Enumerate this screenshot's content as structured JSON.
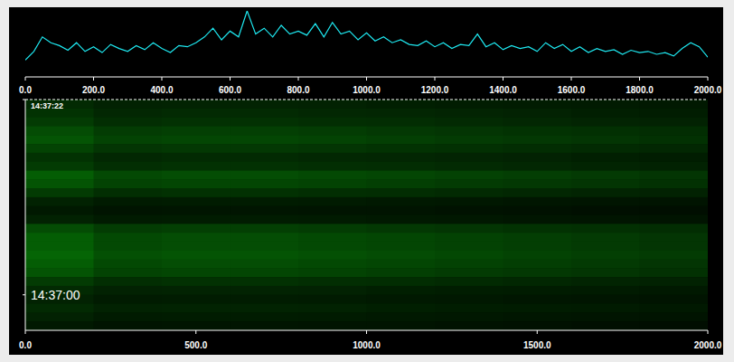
{
  "chart_data": [
    {
      "type": "line",
      "color": "#1ee8f0",
      "tick_labels": "x",
      "x": [
        0,
        25,
        50,
        75,
        100,
        125,
        150,
        175,
        200,
        225,
        250,
        275,
        300,
        325,
        350,
        375,
        400,
        425,
        450,
        475,
        500,
        525,
        550,
        575,
        600,
        625,
        650,
        675,
        700,
        725,
        750,
        775,
        800,
        825,
        850,
        875,
        900,
        925,
        950,
        975,
        1000,
        1025,
        1050,
        1075,
        1100,
        1125,
        1150,
        1175,
        1200,
        1225,
        1250,
        1275,
        1300,
        1325,
        1350,
        1375,
        1400,
        1425,
        1450,
        1475,
        1500,
        1525,
        1550,
        1575,
        1600,
        1625,
        1650,
        1675,
        1700,
        1725,
        1750,
        1775,
        1800,
        1825,
        1850,
        1875,
        1900,
        1925,
        1950,
        1975,
        2000
      ],
      "values": [
        15,
        30,
        55,
        45,
        40,
        32,
        45,
        30,
        38,
        28,
        42,
        35,
        30,
        40,
        33,
        45,
        35,
        28,
        40,
        38,
        45,
        55,
        70,
        50,
        65,
        55,
        100,
        60,
        70,
        55,
        75,
        60,
        65,
        58,
        78,
        55,
        80,
        60,
        65,
        50,
        62,
        48,
        55,
        45,
        50,
        42,
        40,
        48,
        38,
        45,
        35,
        42,
        40,
        60,
        38,
        45,
        33,
        40,
        35,
        38,
        30,
        45,
        35,
        42,
        30,
        38,
        28,
        35,
        30,
        33,
        25,
        32,
        28,
        30,
        25,
        28,
        22,
        35,
        45,
        38,
        20
      ],
      "xlim": [
        0,
        2000
      ],
      "ylim": [
        0,
        100
      ],
      "xticks": [
        {
          "value": 0,
          "label": "0.0"
        },
        {
          "value": 200,
          "label": "200.0"
        },
        {
          "value": 400,
          "label": "400.0"
        },
        {
          "value": 600,
          "label": "600.0"
        },
        {
          "value": 800,
          "label": "800.0"
        },
        {
          "value": 1000,
          "label": "1000.0"
        },
        {
          "value": 1200,
          "label": "1200.0"
        },
        {
          "value": 1400,
          "label": "1400.0"
        },
        {
          "value": 1600,
          "label": "1600.0"
        },
        {
          "value": 1800,
          "label": "1800.0"
        },
        {
          "value": 2000,
          "label": "2000.0"
        }
      ]
    },
    {
      "type": "heatmap",
      "color": "#3cff3c",
      "xlim": [
        0,
        2000
      ],
      "ylim": [
        -4,
        22
      ],
      "xticks": [
        {
          "value": 0,
          "label": "0.0"
        },
        {
          "value": 500,
          "label": "500.0"
        },
        {
          "value": 1000,
          "label": "1000.0"
        },
        {
          "value": 1500,
          "label": "1500.0"
        },
        {
          "value": 2000,
          "label": "2000.0"
        }
      ],
      "yticks": [
        {
          "value": 22,
          "label": "14:37:22"
        },
        {
          "value": 0,
          "label": "14:37:00"
        }
      ],
      "x_bins": [
        0,
        200,
        400,
        600,
        800,
        1000,
        1200,
        1400,
        1600,
        1800,
        2000
      ],
      "y_bins": [
        22,
        21,
        20,
        19,
        18,
        17,
        16,
        15,
        14,
        13,
        12,
        11,
        10,
        9,
        8,
        7,
        6,
        5,
        4,
        3,
        2,
        1,
        0,
        -1,
        -2,
        -3,
        -4
      ],
      "color_range": [
        0,
        100
      ],
      "cells": [
        [
          30,
          24,
          25,
          25,
          24,
          22,
          21,
          20,
          19,
          18
        ],
        [
          36,
          28,
          30,
          30,
          28,
          27,
          26,
          24,
          22,
          21
        ],
        [
          42,
          33,
          35,
          35,
          33,
          32,
          30,
          28,
          26,
          24
        ],
        [
          54,
          43,
          45,
          45,
          43,
          40,
          38,
          36,
          34,
          32
        ],
        [
          60,
          48,
          50,
          50,
          48,
          45,
          42,
          40,
          38,
          35
        ],
        [
          48,
          38,
          40,
          40,
          38,
          36,
          34,
          32,
          30,
          28
        ],
        [
          36,
          28,
          30,
          30,
          28,
          27,
          26,
          24,
          22,
          21
        ],
        [
          42,
          33,
          35,
          35,
          33,
          32,
          30,
          28,
          26,
          24
        ],
        [
          66,
          52,
          55,
          55,
          52,
          50,
          47,
          44,
          41,
          38
        ],
        [
          60,
          48,
          50,
          50,
          48,
          45,
          42,
          40,
          38,
          35
        ],
        [
          42,
          33,
          35,
          35,
          33,
          32,
          30,
          28,
          26,
          24
        ],
        [
          24,
          19,
          20,
          20,
          19,
          18,
          17,
          16,
          15,
          14
        ],
        [
          18,
          14,
          15,
          15,
          14,
          14,
          13,
          12,
          11,
          10
        ],
        [
          24,
          19,
          20,
          20,
          19,
          18,
          17,
          16,
          15,
          14
        ],
        [
          54,
          43,
          45,
          45,
          43,
          40,
          38,
          36,
          34,
          32
        ],
        [
          66,
          52,
          55,
          55,
          52,
          50,
          47,
          44,
          41,
          38
        ],
        [
          66,
          52,
          55,
          55,
          52,
          50,
          47,
          44,
          41,
          38
        ],
        [
          72,
          57,
          60,
          60,
          57,
          54,
          51,
          48,
          45,
          42
        ],
        [
          66,
          52,
          55,
          55,
          52,
          50,
          47,
          44,
          41,
          38
        ],
        [
          60,
          48,
          50,
          50,
          48,
          45,
          42,
          40,
          38,
          35
        ],
        [
          42,
          33,
          35,
          35,
          33,
          32,
          30,
          28,
          26,
          24
        ],
        [
          30,
          24,
          25,
          25,
          24,
          22,
          21,
          20,
          19,
          18
        ],
        [
          24,
          19,
          20,
          20,
          19,
          18,
          17,
          16,
          15,
          14
        ],
        [
          30,
          24,
          25,
          25,
          24,
          22,
          21,
          20,
          19,
          18
        ],
        [
          24,
          19,
          20,
          20,
          19,
          18,
          17,
          16,
          15,
          14
        ],
        [
          18,
          14,
          15,
          15,
          14,
          14,
          13,
          12,
          11,
          10
        ]
      ]
    }
  ]
}
